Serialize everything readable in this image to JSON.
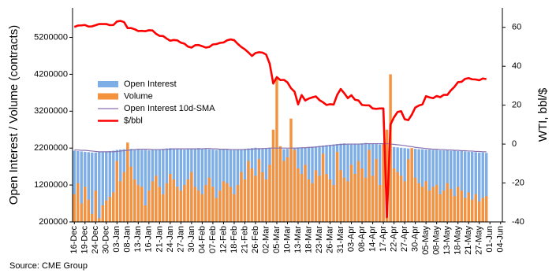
{
  "chart_data": {
    "type": "bar",
    "ylabel": "Open Interest / Volume (contracts)",
    "y2label": "WTI, bbl/$",
    "source": "Source: CME Group",
    "legend": "center-left",
    "ylim": [
      200000,
      6000000
    ],
    "yticks": [
      200000,
      1200000,
      2200000,
      3200000,
      4200000,
      5200000
    ],
    "y2lim": [
      -40,
      70
    ],
    "y2ticks": [
      -40,
      -20,
      0,
      20,
      40,
      60
    ],
    "categories": [
      "16-Dec",
      null,
      null,
      "19-Dec",
      null,
      null,
      "24-Dec",
      null,
      null,
      "30-Dec",
      null,
      null,
      "03-Jan",
      null,
      null,
      "08-Jan",
      null,
      null,
      "13-Jan",
      null,
      null,
      "16-Jan",
      null,
      null,
      "21-Jan",
      null,
      null,
      "24-Jan",
      null,
      null,
      "27-Jan",
      null,
      null,
      "30-Jan",
      null,
      null,
      "04-Feb",
      null,
      null,
      "07-Feb",
      null,
      null,
      "12-Feb",
      null,
      null,
      "18-Feb",
      null,
      null,
      "21-Feb",
      null,
      null,
      "26-Feb",
      null,
      null,
      "02-Mar",
      null,
      null,
      "05-Mar",
      null,
      null,
      "10-Mar",
      null,
      null,
      "13-Mar",
      null,
      null,
      "18-Mar",
      null,
      null,
      "23-Mar",
      null,
      null,
      "26-Mar",
      null,
      null,
      "31-Mar",
      null,
      null,
      "03-Apr",
      null,
      null,
      "08-Apr",
      null,
      null,
      "14-Apr",
      null,
      null,
      "17-Apr",
      null,
      null,
      "22-Apr",
      null,
      null,
      "27-Apr",
      null,
      null,
      "30-Apr",
      null,
      null,
      "05-May",
      null,
      null,
      "08-May",
      null,
      null,
      "13-May",
      null,
      null,
      "18-May",
      null,
      null,
      "21-May",
      null,
      null,
      "27-May",
      null,
      null,
      "01-Jun",
      null,
      null,
      "04-Jun"
    ],
    "series": [
      {
        "name": "Open Interest",
        "type": "bar",
        "color": "#7eaee6",
        "values": [
          2130000,
          2120000,
          2110000,
          2100000,
          2090000,
          2080000,
          2080000,
          2090000,
          2100000,
          2110000,
          2120000,
          2130000,
          2150000,
          2160000,
          2170000,
          2190000,
          2180000,
          2170000,
          2160000,
          2150000,
          2150000,
          2140000,
          2150000,
          2160000,
          2170000,
          2180000,
          2190000,
          2200000,
          2190000,
          2180000,
          2170000,
          2160000,
          2170000,
          2180000,
          2190000,
          2200000,
          2190000,
          2180000,
          2170000,
          2160000,
          2150000,
          2160000,
          2170000,
          2160000,
          2150000,
          2150000,
          2160000,
          2170000,
          2180000,
          2190000,
          2200000,
          2210000,
          2200000,
          2190000,
          2200000,
          2210000,
          2220000,
          2200000,
          2180000,
          2170000,
          2180000,
          2200000,
          2210000,
          2220000,
          2210000,
          2220000,
          2230000,
          2240000,
          2250000,
          2260000,
          2270000,
          2280000,
          2290000,
          2300000,
          2310000,
          2320000,
          2330000,
          2310000,
          2300000,
          2310000,
          2320000,
          2330000,
          2340000,
          2330000,
          2320000,
          2310000,
          2300000,
          2320000,
          2290000,
          2250000,
          2230000,
          2220000,
          2210000,
          2200000,
          2190000,
          2190000,
          2180000,
          2170000,
          2170000,
          2160000,
          2160000,
          2150000,
          2150000,
          2140000,
          2140000,
          2140000,
          2130000,
          2130000,
          2120000,
          2120000,
          2110000,
          2100000,
          2100000,
          2090000,
          2080000,
          2080000,
          2070000,
          null,
          null,
          null,
          null
        ]
      },
      {
        "name": "Volume",
        "type": "bar",
        "color": "#f5923e",
        "values": [
          950000,
          1250000,
          700000,
          1150000,
          800000,
          420000,
          1050000,
          300000,
          650000,
          780000,
          880000,
          1000000,
          1850000,
          1300000,
          1550000,
          2350000,
          1700000,
          1350000,
          1200000,
          1150000,
          650000,
          1050000,
          1300000,
          1450000,
          1150000,
          950000,
          1250000,
          1500000,
          1350000,
          1150000,
          1050000,
          1200000,
          1350000,
          1550000,
          1150000,
          1050000,
          950000,
          1200000,
          1400000,
          1150000,
          850000,
          1050000,
          1300000,
          1250000,
          1150000,
          950000,
          1200000,
          1550000,
          1350000,
          1850000,
          1650000,
          1450000,
          1900000,
          1550000,
          1350000,
          1750000,
          2700000,
          4100000,
          2250000,
          1850000,
          1950000,
          3000000,
          2150000,
          1650000,
          1500000,
          1750000,
          1350000,
          1250000,
          1600000,
          1450000,
          2050000,
          1500000,
          1350000,
          1200000,
          2100000,
          1600000,
          1400000,
          1300000,
          1750000,
          1500000,
          1850000,
          1650000,
          1400000,
          2150000,
          1450000,
          1900000,
          1200000,
          2300000,
          2700000,
          4200000,
          1650000,
          1550000,
          1450000,
          1300000,
          1900000,
          2200000,
          1400000,
          1250000,
          1150000,
          1300000,
          1050000,
          1150000,
          1200000,
          950000,
          1050000,
          1250000,
          1100000,
          900000,
          1150000,
          1050000,
          850000,
          1000000,
          800000,
          950000,
          750000,
          850000,
          900000,
          null,
          null,
          null,
          null
        ]
      },
      {
        "name": "Open Interest 10d-SMA",
        "type": "line",
        "color": "#8a72b0",
        "values": [
          2150000,
          2150000,
          2140000,
          2140000,
          2130000,
          2120000,
          2110000,
          2100000,
          2100000,
          2100000,
          2100000,
          2100000,
          2110000,
          2120000,
          2130000,
          2140000,
          2150000,
          2160000,
          2170000,
          2170000,
          2170000,
          2170000,
          2160000,
          2160000,
          2160000,
          2160000,
          2170000,
          2170000,
          2180000,
          2180000,
          2180000,
          2180000,
          2180000,
          2180000,
          2180000,
          2180000,
          2180000,
          2190000,
          2190000,
          2180000,
          2180000,
          2170000,
          2170000,
          2170000,
          2160000,
          2160000,
          2160000,
          2160000,
          2160000,
          2170000,
          2170000,
          2180000,
          2180000,
          2190000,
          2190000,
          2200000,
          2200000,
          2200000,
          2200000,
          2200000,
          2200000,
          2200000,
          2200000,
          2200000,
          2210000,
          2210000,
          2220000,
          2220000,
          2230000,
          2240000,
          2250000,
          2260000,
          2270000,
          2280000,
          2290000,
          2300000,
          2300000,
          2310000,
          2310000,
          2310000,
          2310000,
          2310000,
          2320000,
          2320000,
          2320000,
          2320000,
          2320000,
          2320000,
          2320000,
          2310000,
          2300000,
          2290000,
          2280000,
          2270000,
          2250000,
          2240000,
          2220000,
          2210000,
          2200000,
          2190000,
          2180000,
          2170000,
          2170000,
          2160000,
          2160000,
          2150000,
          2150000,
          2140000,
          2140000,
          2130000,
          2130000,
          2120000,
          2120000,
          2110000,
          2110000,
          2100000,
          2100000,
          null,
          null,
          null,
          null
        ]
      },
      {
        "name": "$/bbl",
        "type": "line",
        "axis": "y2",
        "color": "#ff0000",
        "values": [
          60.2,
          60.9,
          61.0,
          61.2,
          60.4,
          60.5,
          61.1,
          61.7,
          61.7,
          61.7,
          61.1,
          61.2,
          63.0,
          63.3,
          62.7,
          59.6,
          59.6,
          59.0,
          58.1,
          58.2,
          58.0,
          58.5,
          58.4,
          56.7,
          55.6,
          55.5,
          54.2,
          53.1,
          53.5,
          53.3,
          52.1,
          51.6,
          50.1,
          49.6,
          50.8,
          50.9,
          50.3,
          49.6,
          49.9,
          51.2,
          51.4,
          52.0,
          52.2,
          53.3,
          53.8,
          53.4,
          51.5,
          49.9,
          48.7,
          47.1,
          45.3,
          46.8,
          47.2,
          47.0,
          46.0,
          41.3,
          31.1,
          34.4,
          32.9,
          33.0,
          31.7,
          28.7,
          26.9,
          20.4,
          25.2,
          22.4,
          23.4,
          24.0,
          24.5,
          22.6,
          21.5,
          20.1,
          20.5,
          20.3,
          25.3,
          28.3,
          26.1,
          23.6,
          25.1,
          22.8,
          22.4,
          20.1,
          19.9,
          19.9,
          18.3,
          18.1,
          18.3,
          18.3,
          -37.6,
          10.0,
          13.8,
          16.5,
          16.9,
          12.8,
          12.3,
          15.1,
          18.8,
          19.8,
          20.4,
          24.6,
          24.0,
          23.6,
          24.7,
          24.1,
          25.3,
          25.3,
          27.6,
          29.4,
          31.8,
          32.0,
          33.5,
          33.9,
          33.3,
          33.2,
          32.8,
          33.7,
          33.4,
          null,
          null,
          null,
          null
        ]
      }
    ]
  }
}
